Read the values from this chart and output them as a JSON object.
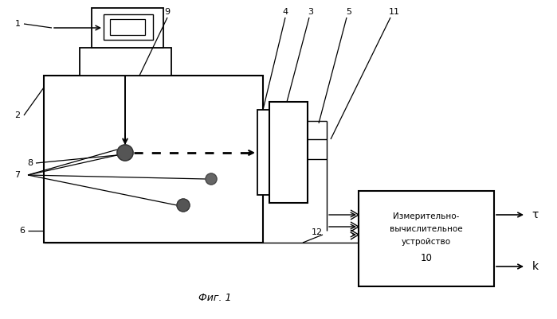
{
  "bg_color": "#ffffff",
  "line_color": "#000000",
  "fig_caption": "Фиг. 1",
  "output_tau": "τ",
  "output_k": "k"
}
